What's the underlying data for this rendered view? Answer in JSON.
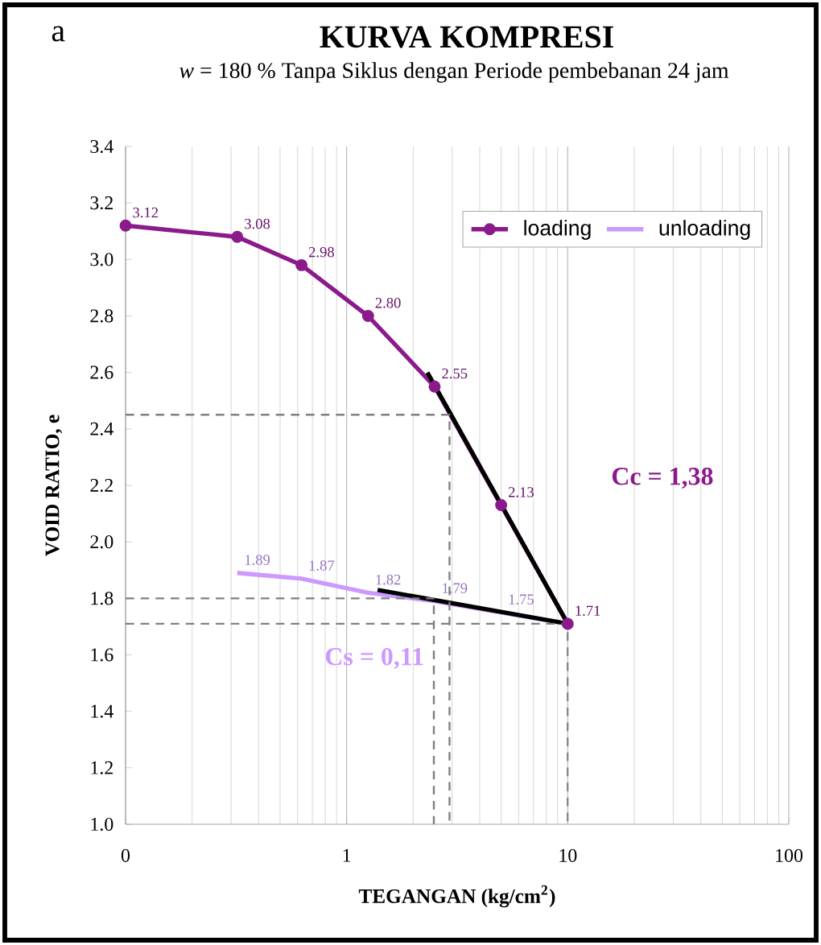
{
  "chart_data": {
    "type": "line",
    "title": "KURVA KOMPRESI",
    "subtitle": "*w* = 180 % Tanpa Siklus dengan Periode pembebanan 24 jam",
    "xlabel": "TEGANGAN  (kg/cm$^{2}$)",
    "ylabel": "VOID RATIO, e",
    "annotations": [
      "a",
      "Cc = 1,38",
      "Cs = 0,11"
    ],
    "log": "x",
    "grid": "x",
    "legend": "top right",
    "xlim": [
      0.1,
      100
    ],
    "xticks": [
      {
        "value": 0.1,
        "label": "0"
      },
      1,
      10,
      100
    ],
    "ylim": [
      1.0,
      3.4
    ],
    "yticks": [
      {
        "value": 1.0,
        "label": "1.0"
      },
      1.2,
      1.4,
      1.6,
      1.8,
      {
        "value": 2.0,
        "label": "2.0"
      },
      2.2,
      2.4,
      2.6,
      2.8,
      {
        "value": 3.0,
        "label": "3.0"
      },
      3.2,
      3.4
    ],
    "series": [
      {
        "name": "loading",
        "color": "#8b1a8b",
        "marker": "circle",
        "x": [
          0.1,
          0.32,
          0.625,
          1.25,
          2.5,
          5,
          10
        ],
        "values": [
          3.12,
          3.08,
          2.98,
          2.8,
          2.55,
          2.13,
          1.71
        ],
        "value_labels": [
          "3.12",
          "3.08",
          "2.98",
          "2.80",
          "2.55",
          "2.13",
          "1.71"
        ]
      },
      {
        "name": "unloading",
        "color": "#cc99ff",
        "marker": "none",
        "x": [
          10,
          5,
          2.5,
          1.25,
          0.625,
          0.32
        ],
        "values": [
          1.71,
          1.75,
          1.79,
          1.82,
          1.87,
          1.89
        ],
        "value_labels": [
          null,
          "1.75",
          "1.79",
          "1.82",
          "1.87",
          "1.89"
        ]
      },
      {
        "type": "line",
        "color": "#000000",
        "marker": "none",
        "x": [
          2.32,
          10
        ],
        "values": [
          2.6,
          1.71
        ]
      },
      {
        "type": "line",
        "color": "#000000",
        "marker": "none",
        "x": [
          1.38,
          10
        ],
        "values": [
          1.83,
          1.71
        ]
      },
      {
        "type": "line",
        "color": "#808080",
        "marker": "none",
        "line_style": "dashed",
        "x": [
          0.1,
          2.92,
          2.92
        ],
        "values": [
          2.45,
          2.45,
          1.0
        ]
      },
      {
        "type": "line",
        "color": "#808080",
        "marker": "none",
        "line_style": "dashed",
        "x": [
          0.1,
          2.48,
          2.48
        ],
        "values": [
          1.8,
          1.8,
          1.0
        ]
      },
      {
        "type": "line",
        "color": "#808080",
        "marker": "none",
        "line_style": "dashed",
        "x": [
          0.1,
          10,
          10
        ],
        "values": [
          1.71,
          1.71,
          1.0
        ]
      }
    ]
  }
}
